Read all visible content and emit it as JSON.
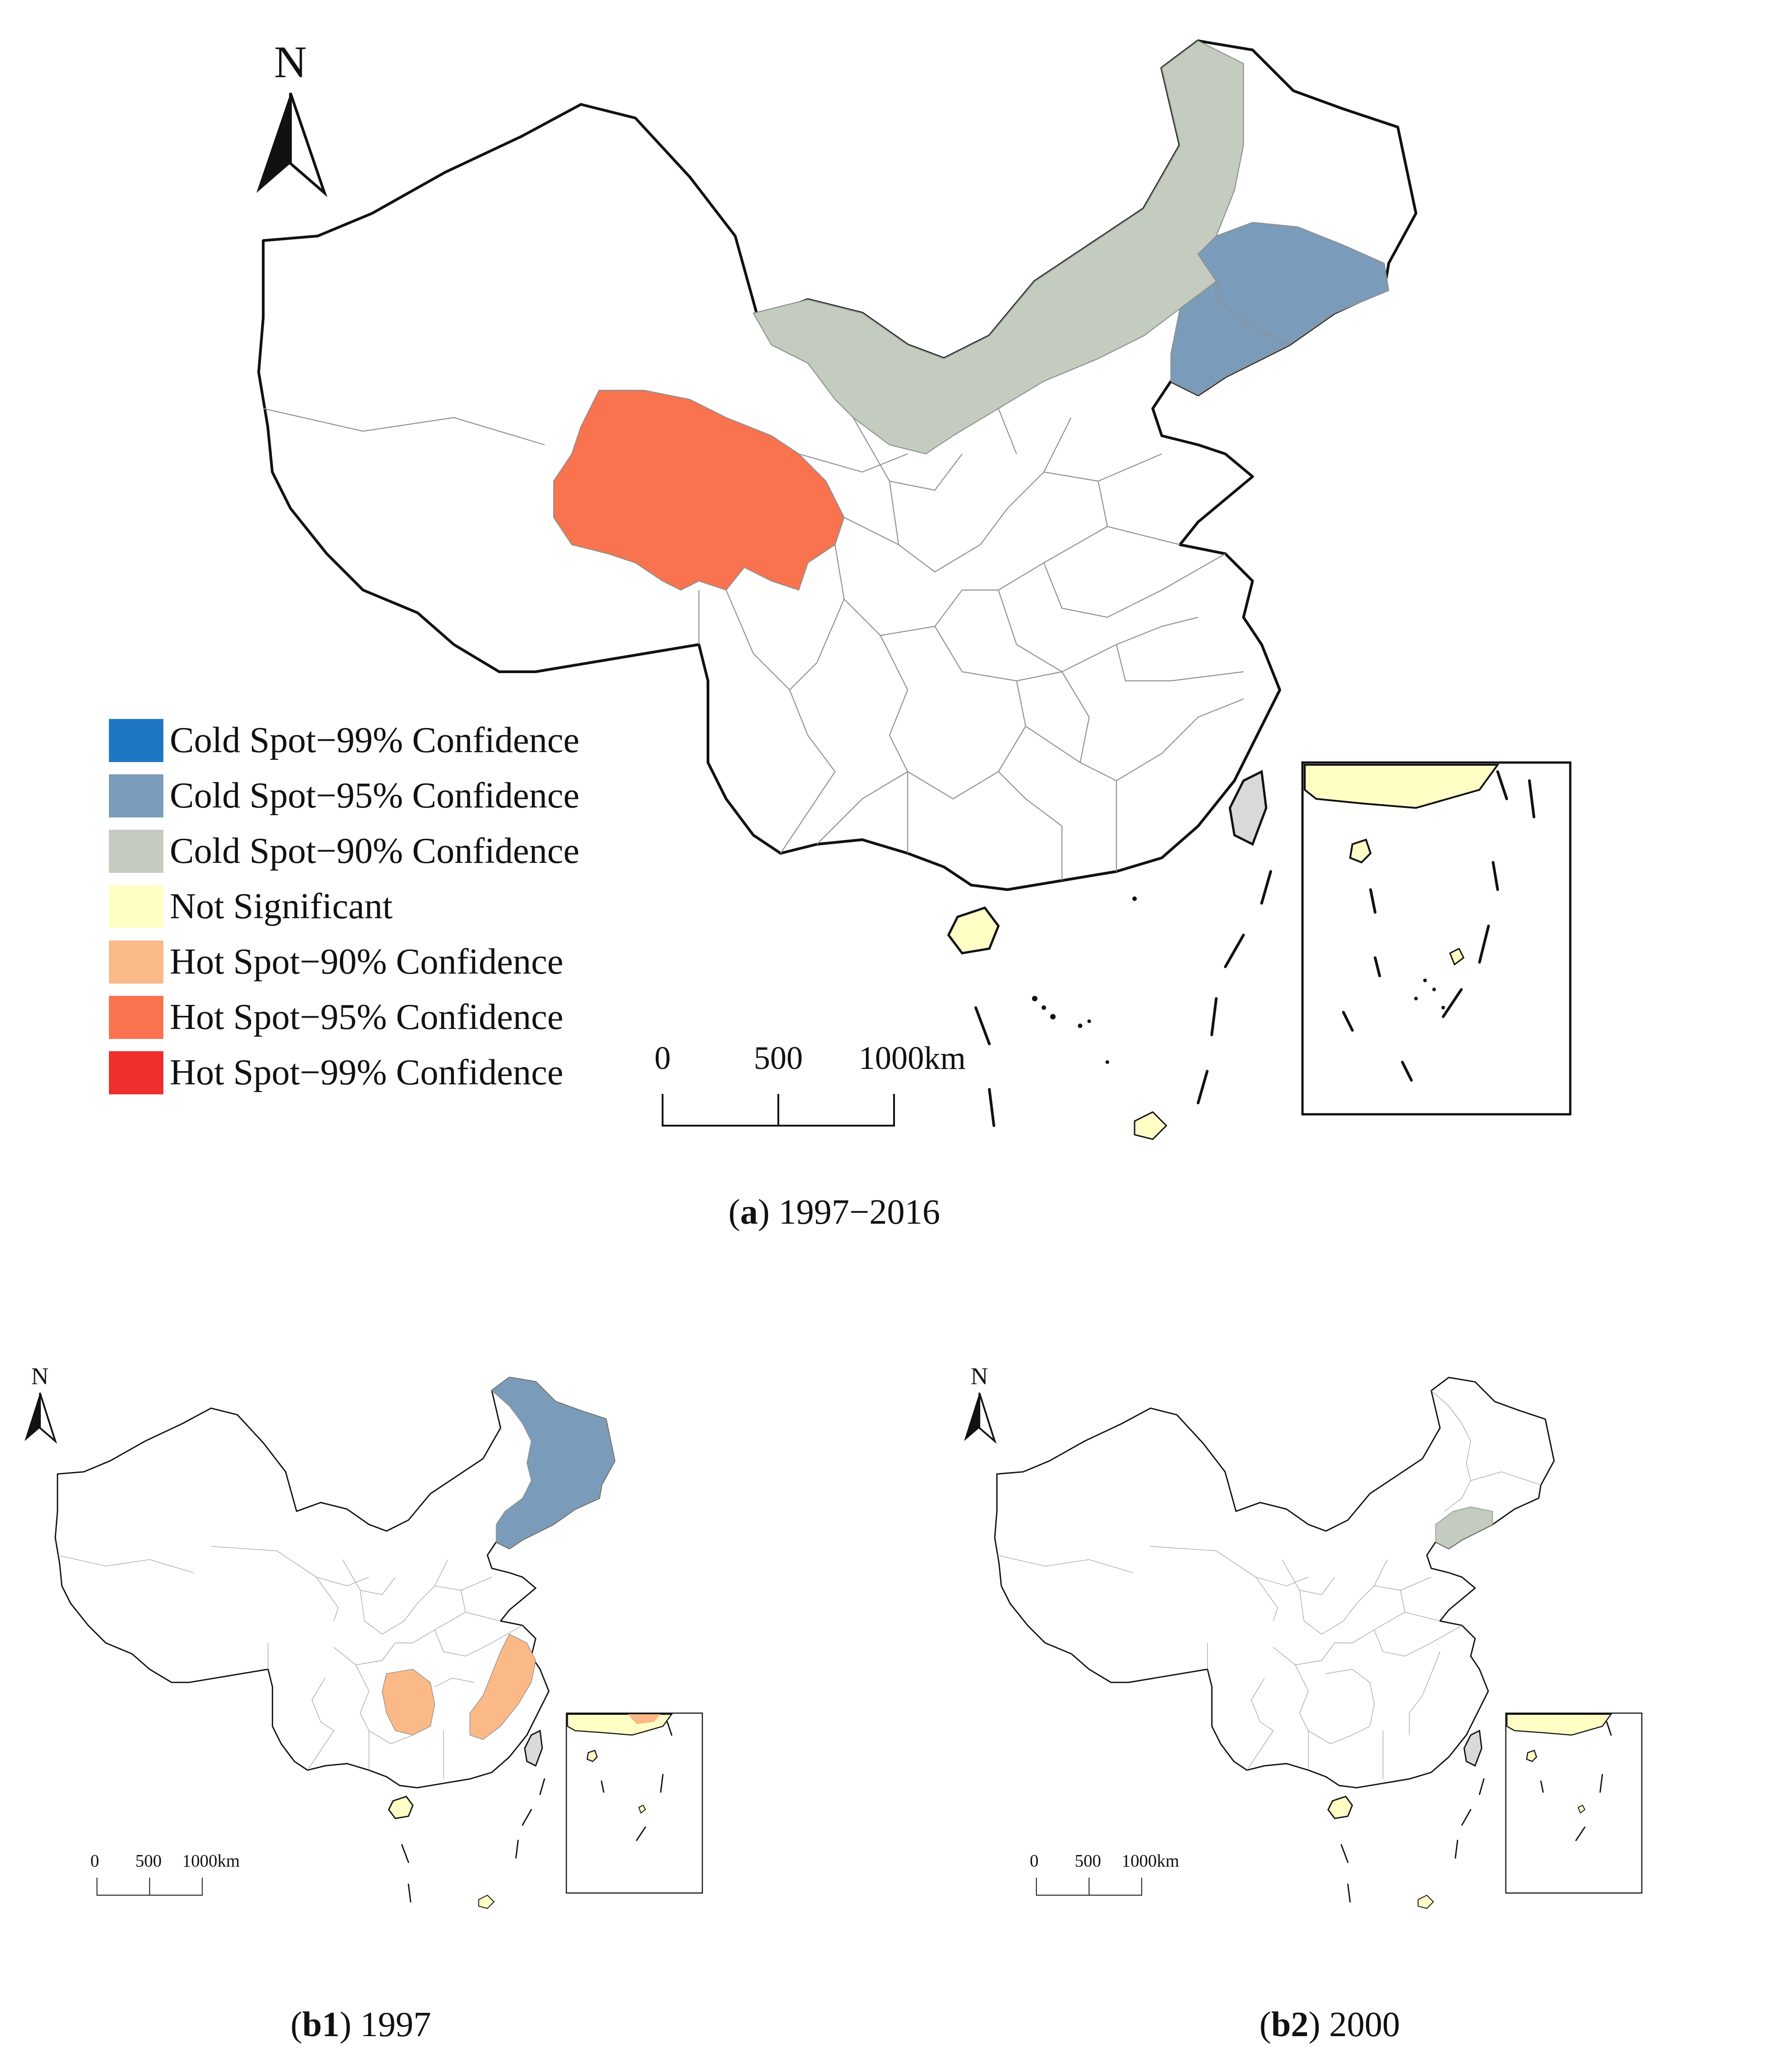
{
  "north_label": "N",
  "scale_bar": {
    "labels": [
      "0",
      "500",
      "1000km"
    ]
  },
  "legend": {
    "items": [
      {
        "label": "Cold Spot−99% Confidence",
        "color": "#1f77c4"
      },
      {
        "label": "Cold Spot−95% Confidence",
        "color": "#7a9cba"
      },
      {
        "label": "Cold Spot−90% Confidence",
        "color": "#c3ccbe"
      },
      {
        "label": "Not Significant",
        "color": "#ffffc5"
      },
      {
        "label": "Hot Spot−90% Confidence",
        "color": "#fbb987"
      },
      {
        "label": "Hot Spot−95% Confidence",
        "color": "#f9734f"
      },
      {
        "label": "Hot Spot−99% Confidence",
        "color": "#ef2e2e"
      }
    ]
  },
  "maps": [
    {
      "id": "a",
      "caption_letter": "a",
      "caption_text": " 1997−2016",
      "highlights": [
        {
          "region": "Heilongjiang-north-east",
          "class": "Not Significant"
        },
        {
          "region": "Inner Mongolia",
          "class": "Cold Spot−90% Confidence"
        },
        {
          "region": "Jilin",
          "class": "Cold Spot−95% Confidence"
        },
        {
          "region": "Liaoning",
          "class": "Cold Spot−95% Confidence"
        },
        {
          "region": "Qinghai",
          "class": "Hot Spot−95% Confidence"
        }
      ]
    },
    {
      "id": "b1",
      "caption_letter": "b1",
      "caption_text": " 1997",
      "highlights": [
        {
          "region": "Heilongjiang",
          "class": "Cold Spot−95% Confidence"
        },
        {
          "region": "Jilin",
          "class": "Cold Spot−95% Confidence"
        },
        {
          "region": "Liaoning",
          "class": "Cold Spot−95% Confidence"
        },
        {
          "region": "Hunan",
          "class": "Hot Spot−90% Confidence"
        },
        {
          "region": "Fujian-Zhejiang",
          "class": "Hot Spot−90% Confidence"
        }
      ]
    },
    {
      "id": "b2",
      "caption_letter": "b2",
      "caption_text": " 2000",
      "highlights": [
        {
          "region": "Liaoning",
          "class": "Cold Spot−90% Confidence"
        }
      ]
    }
  ],
  "colors": {
    "taiwan": "#d9d9d9",
    "not_significant": "#ffffc5",
    "cold90": "#c3ccbe",
    "cold95": "#7a9cba",
    "hot90": "#fbb987",
    "hot95": "#f9734f"
  }
}
